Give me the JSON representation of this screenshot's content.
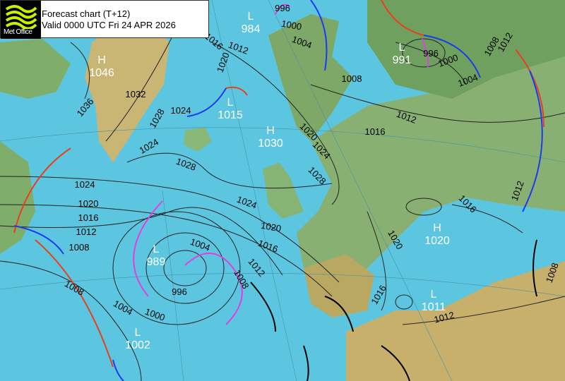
{
  "header": {
    "title": "Forecast chart (T+12)",
    "valid": "Valid 0000 UTC Fri 24 APR 2026",
    "logo_text": "Met Office"
  },
  "colors": {
    "sea": "#5cc6e0",
    "warm_front": "#e8401c",
    "cold_front": "#1a3cf0",
    "occluded_front": "#e040e0",
    "trough": "#000000",
    "isobar": "#222222"
  },
  "pressure_centres": [
    {
      "type": "H",
      "value": "1046"
    },
    {
      "type": "L",
      "value": "984"
    },
    {
      "type": "L",
      "value": "991"
    },
    {
      "type": "L",
      "value": "1015"
    },
    {
      "type": "H",
      "value": "1030"
    },
    {
      "type": "H",
      "value": "1020"
    },
    {
      "type": "L",
      "value": "989"
    },
    {
      "type": "L",
      "value": "1002"
    },
    {
      "type": "L",
      "value": "1011"
    }
  ],
  "isobar_labels": [
    "1016",
    "1012",
    "1000",
    "1004",
    "1020",
    "1036",
    "1032",
    "1028",
    "1024",
    "1024",
    "1028",
    "1024",
    "1020",
    "1016",
    "1012",
    "1008",
    "1008",
    "1004",
    "1000",
    "996",
    "1004",
    "1008",
    "1012",
    "1016",
    "1020",
    "1024",
    "1020",
    "1024",
    "1028",
    "1008",
    "1016",
    "1012",
    "1000",
    "1004",
    "996",
    "1008",
    "1012",
    "1016",
    "1020",
    "1016",
    "1012",
    "1012",
    "1008",
    "996"
  ]
}
